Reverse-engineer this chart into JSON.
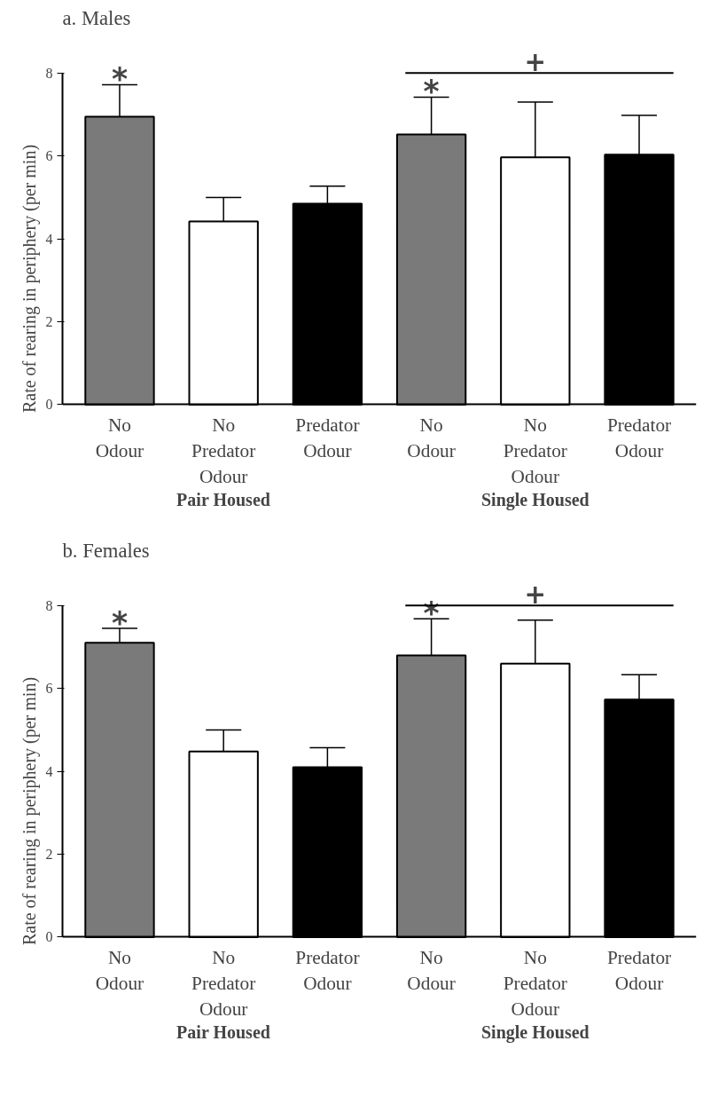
{
  "chart_data": [
    {
      "type": "bar",
      "title": "a. Males",
      "ylabel": "Rate of rearing in periphery (per min)",
      "categories": [
        "No\nOdour",
        "No\nPredator\nOdour",
        "Predator\nOdour",
        "No\nOdour",
        "No\nPredator\nOdour",
        "Predator\nOdour"
      ],
      "values": [
        6.95,
        4.42,
        4.85,
        6.52,
        5.97,
        6.03
      ],
      "errors": [
        [
          6.95,
          7.72
        ],
        [
          4.42,
          5.0
        ],
        [
          4.85,
          5.27
        ],
        [
          6.52,
          7.42
        ],
        [
          5.97,
          7.3
        ],
        [
          6.03,
          6.98
        ]
      ],
      "colors": [
        "#7a7a7a",
        "#ffffff",
        "#000000",
        "#7a7a7a",
        "#ffffff",
        "#000000"
      ],
      "ylim": [
        0,
        8
      ],
      "yticks": [
        0,
        2,
        4,
        6,
        8
      ],
      "grid": false,
      "annotations": [
        "*",
        "*",
        "+",
        "Pair Housed",
        "Single Housed"
      ]
    },
    {
      "type": "bar",
      "title": "b. Females",
      "ylabel": "Rate of rearing in periphery (per min)",
      "categories": [
        "No\nOdour",
        "No\nPredator\nOdour",
        "Predator\nOdour",
        "No\nOdour",
        "No\nPredator\nOdour",
        "Predator\nOdour"
      ],
      "values": [
        7.1,
        4.48,
        4.1,
        6.8,
        6.6,
        5.73
      ],
      "errors": [
        [
          7.1,
          7.45
        ],
        [
          4.48,
          5.0
        ],
        [
          4.1,
          4.57
        ],
        [
          6.8,
          7.68
        ],
        [
          6.6,
          7.65
        ],
        [
          5.73,
          6.33
        ]
      ],
      "colors": [
        "#7a7a7a",
        "#ffffff",
        "#000000",
        "#7a7a7a",
        "#ffffff",
        "#000000"
      ],
      "ylim": [
        0,
        8
      ],
      "yticks": [
        0,
        2,
        4,
        6,
        8
      ],
      "grid": false,
      "annotations": [
        "*",
        "*",
        "+",
        "Pair Housed",
        "Single Housed"
      ]
    }
  ]
}
